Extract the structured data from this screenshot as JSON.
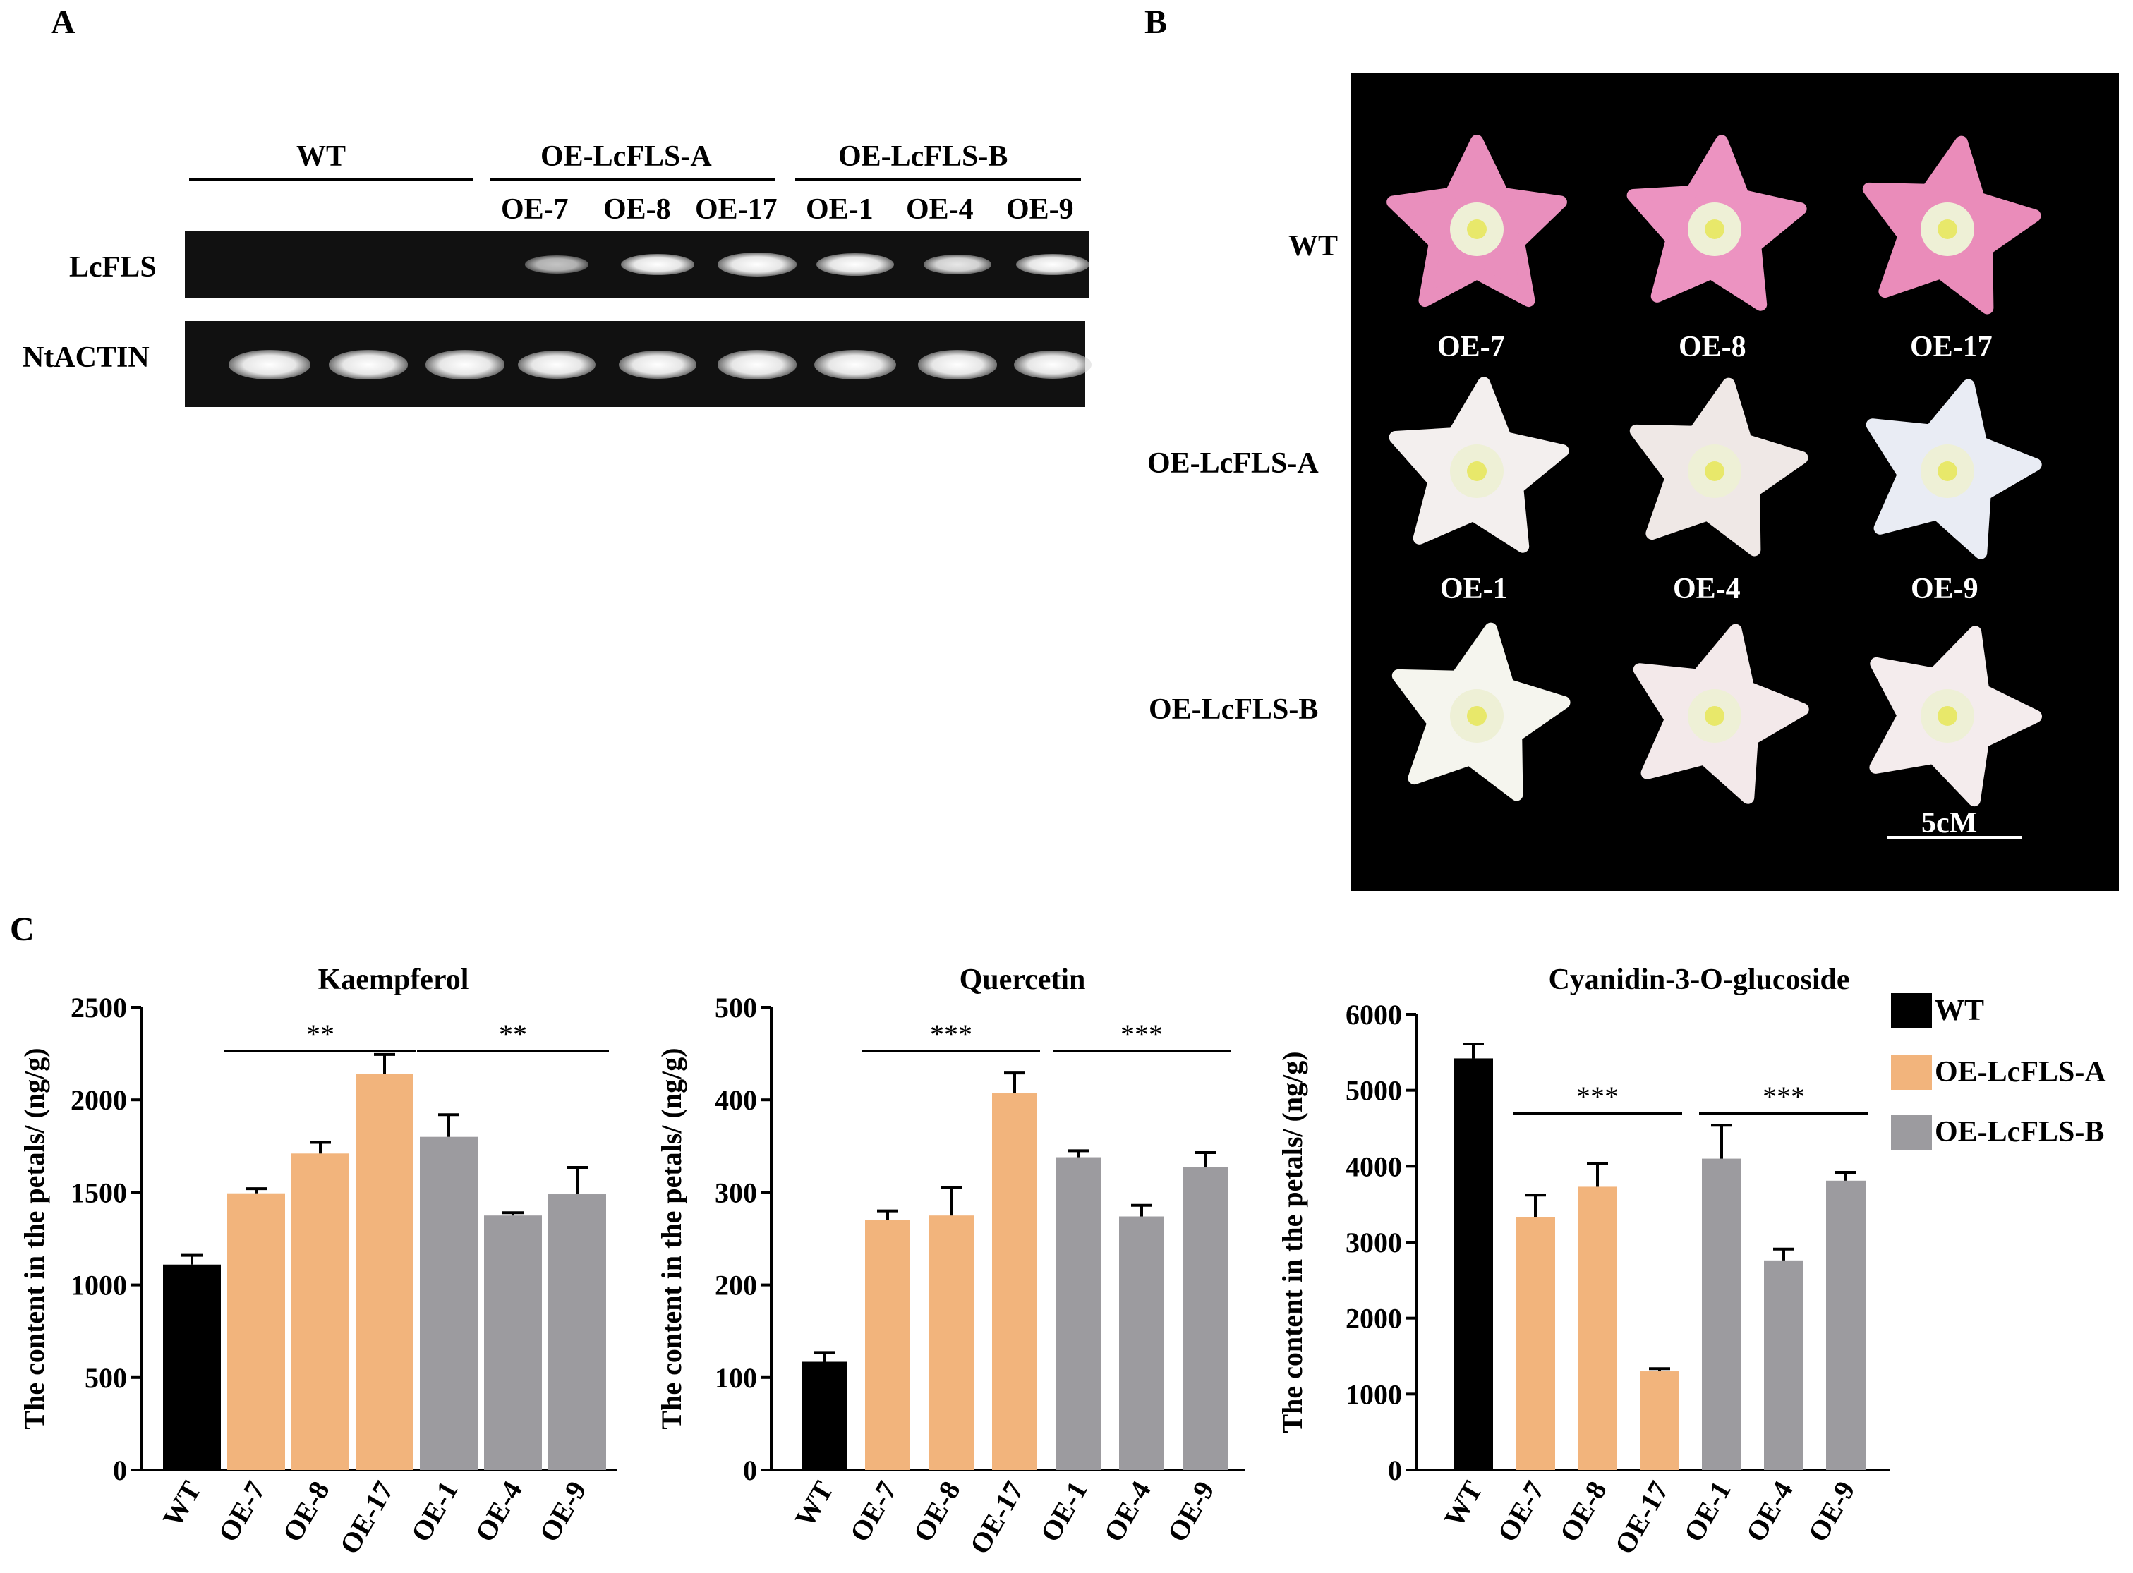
{
  "panels": {
    "a": "A",
    "b": "B",
    "c": "C"
  },
  "gel": {
    "groups": [
      "WT",
      "OE-LcFLS-A",
      "OE-LcFLS-B"
    ],
    "lanes": [
      "OE-7",
      "OE-8",
      "OE-17",
      "OE-1",
      "OE-4",
      "OE-9"
    ],
    "rows": [
      "LcFLS",
      "NtACTIN"
    ],
    "lcfls_relative_intensity": [
      0,
      0,
      0,
      0.45,
      0.75,
      0.95,
      0.9,
      0.6,
      0.75
    ],
    "ntactin_relative_intensity": [
      0.9,
      0.85,
      0.85,
      0.8,
      0.8,
      0.85,
      0.9,
      0.85,
      0.8
    ]
  },
  "photo": {
    "row_labels": [
      "WT",
      "OE-LcFLS-A",
      "OE-LcFLS-B"
    ],
    "line_labels_a": [
      "OE-7",
      "OE-8",
      "OE-17"
    ],
    "line_labels_b": [
      "OE-1",
      "OE-4",
      "OE-9"
    ],
    "scale_bar": "5cM",
    "flower_colors": [
      [
        "#e98fbd",
        "#ec93c1",
        "#ea8cba"
      ],
      [
        "#f3efee",
        "#efe8e6",
        "#e9ecf4"
      ],
      [
        "#f5f5ee",
        "#f3e9ea",
        "#f4eced"
      ]
    ]
  },
  "legend": {
    "items": [
      {
        "label": "WT",
        "color": "#000000"
      },
      {
        "label": "OE-LcFLS-A",
        "color": "#f2b47c"
      },
      {
        "label": "OE-LcFLS-B",
        "color": "#9c9b9f"
      }
    ]
  },
  "chart_data": [
    {
      "type": "bar",
      "title": "Kaempferol",
      "ylabel": "The content in the petals/ (ng/g)",
      "categories": [
        "WT",
        "OE-7",
        "OE-8",
        "OE-17",
        "OE-1",
        "OE-4",
        "OE-9"
      ],
      "values": [
        1110,
        1495,
        1710,
        2140,
        1800,
        1375,
        1490
      ],
      "errors": [
        50,
        25,
        60,
        105,
        120,
        15,
        145
      ],
      "groups": [
        "WT",
        "OE-LcFLS-A",
        "OE-LcFLS-A",
        "OE-LcFLS-A",
        "OE-LcFLS-B",
        "OE-LcFLS-B",
        "OE-LcFLS-B"
      ],
      "ylim": [
        0,
        2500
      ],
      "yticks": [
        0,
        500,
        1000,
        1500,
        2000,
        2500
      ],
      "ytick_labels": [
        "0",
        "500",
        "1000",
        "1500",
        "2000",
        "2500"
      ],
      "significance": [
        {
          "label": "**",
          "from": 1,
          "to": 3
        },
        {
          "label": "**",
          "from": 4,
          "to": 6
        }
      ]
    },
    {
      "type": "bar",
      "title": "Quercetin",
      "ylabel": "The content in the petals/ (ng/g)",
      "categories": [
        "WT",
        "OE-7",
        "OE-8",
        "OE-17",
        "OE-1",
        "OE-4",
        "OE-9"
      ],
      "values": [
        117,
        270,
        275,
        407,
        338,
        274,
        327
      ],
      "errors": [
        10,
        10,
        30,
        22,
        7,
        12,
        16
      ],
      "groups": [
        "WT",
        "OE-LcFLS-A",
        "OE-LcFLS-A",
        "OE-LcFLS-A",
        "OE-LcFLS-B",
        "OE-LcFLS-B",
        "OE-LcFLS-B"
      ],
      "ylim": [
        0,
        500
      ],
      "yticks": [
        0,
        100,
        200,
        300,
        400,
        500
      ],
      "ytick_labels": [
        "0",
        "100",
        "200",
        "300",
        "400",
        "500"
      ],
      "significance": [
        {
          "label": "***",
          "from": 1,
          "to": 3
        },
        {
          "label": "***",
          "from": 4,
          "to": 6
        }
      ]
    },
    {
      "type": "bar",
      "title": "Cyanidin-3-O-glucoside",
      "ylabel": "The content in the petals/ (ng/g)",
      "categories": [
        "WT",
        "OE-7",
        "OE-8",
        "OE-17",
        "OE-1",
        "OE-4",
        "OE-9"
      ],
      "values": [
        5420,
        3330,
        3730,
        1300,
        4100,
        2760,
        3810
      ],
      "errors": [
        190,
        290,
        310,
        35,
        440,
        150,
        110
      ],
      "groups": [
        "WT",
        "OE-LcFLS-A",
        "OE-LcFLS-A",
        "OE-LcFLS-A",
        "OE-LcFLS-B",
        "OE-LcFLS-B",
        "OE-LcFLS-B"
      ],
      "ylim": [
        0,
        6000
      ],
      "yticks": [
        0,
        1000,
        2000,
        3000,
        4000,
        5000,
        6000
      ],
      "ytick_labels": [
        "0",
        "1000",
        "2000",
        "3000",
        "4000",
        "5000",
        "6000"
      ],
      "significance": [
        {
          "label": "***",
          "from": 1,
          "to": 3
        },
        {
          "label": "***",
          "from": 4,
          "to": 6
        }
      ]
    }
  ]
}
